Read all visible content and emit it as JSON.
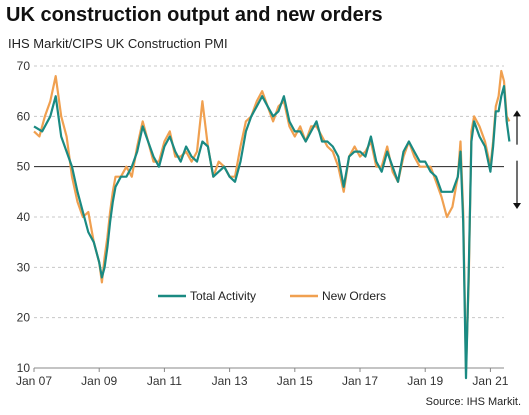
{
  "chart_data": {
    "type": "line",
    "title": "UK construction output and new orders",
    "subtitle": "IHS Markit/CIPS UK Construction PMI",
    "source": "Source: IHS Markit.",
    "ylim": [
      10,
      70
    ],
    "yticks": [
      10,
      20,
      30,
      40,
      50,
      60,
      70
    ],
    "xlim": [
      "2007-01",
      "2021-06"
    ],
    "xticks": [
      "Jan 07",
      "Jan 09",
      "Jan 11",
      "Jan 13",
      "Jan 15",
      "Jan 17",
      "Jan 19",
      "Jan 21"
    ],
    "reference_line": 50,
    "legend_placement": "lower-center",
    "annotation": "double-headed arrow spanning above and below 50",
    "series": [
      {
        "name": "Total Activity",
        "color": "#1a8a82",
        "points": [
          [
            "2007-01",
            58
          ],
          [
            "2007-04",
            57
          ],
          [
            "2007-07",
            60
          ],
          [
            "2007-09",
            64
          ],
          [
            "2007-11",
            56
          ],
          [
            "2008-01",
            53
          ],
          [
            "2008-03",
            50
          ],
          [
            "2008-05",
            45
          ],
          [
            "2008-07",
            41
          ],
          [
            "2008-09",
            37
          ],
          [
            "2008-11",
            35
          ],
          [
            "2009-01",
            31
          ],
          [
            "2009-02",
            28
          ],
          [
            "2009-03",
            30
          ],
          [
            "2009-04",
            34
          ],
          [
            "2009-05",
            39
          ],
          [
            "2009-06",
            43
          ],
          [
            "2009-07",
            46
          ],
          [
            "2009-09",
            48
          ],
          [
            "2009-11",
            48
          ],
          [
            "2010-01",
            50
          ],
          [
            "2010-03",
            53
          ],
          [
            "2010-05",
            58
          ],
          [
            "2010-07",
            55
          ],
          [
            "2010-09",
            52
          ],
          [
            "2010-11",
            50
          ],
          [
            "2011-01",
            54
          ],
          [
            "2011-03",
            56
          ],
          [
            "2011-05",
            53
          ],
          [
            "2011-07",
            51
          ],
          [
            "2011-09",
            54
          ],
          [
            "2011-11",
            52
          ],
          [
            "2012-01",
            51
          ],
          [
            "2012-03",
            55
          ],
          [
            "2012-05",
            54
          ],
          [
            "2012-07",
            48
          ],
          [
            "2012-09",
            49
          ],
          [
            "2012-11",
            50
          ],
          [
            "2013-01",
            48
          ],
          [
            "2013-03",
            47
          ],
          [
            "2013-05",
            51
          ],
          [
            "2013-07",
            57
          ],
          [
            "2013-09",
            60
          ],
          [
            "2013-11",
            62
          ],
          [
            "2014-01",
            64
          ],
          [
            "2014-03",
            62
          ],
          [
            "2014-05",
            60
          ],
          [
            "2014-07",
            61
          ],
          [
            "2014-09",
            64
          ],
          [
            "2014-11",
            59
          ],
          [
            "2015-01",
            57
          ],
          [
            "2015-03",
            57
          ],
          [
            "2015-05",
            55
          ],
          [
            "2015-07",
            57
          ],
          [
            "2015-09",
            59
          ],
          [
            "2015-11",
            55
          ],
          [
            "2016-01",
            55
          ],
          [
            "2016-03",
            54
          ],
          [
            "2016-05",
            52
          ],
          [
            "2016-07",
            46
          ],
          [
            "2016-09",
            52
          ],
          [
            "2016-11",
            53
          ],
          [
            "2017-01",
            53
          ],
          [
            "2017-03",
            52
          ],
          [
            "2017-05",
            56
          ],
          [
            "2017-07",
            51
          ],
          [
            "2017-09",
            49
          ],
          [
            "2017-11",
            53
          ],
          [
            "2018-01",
            50
          ],
          [
            "2018-03",
            47
          ],
          [
            "2018-05",
            53
          ],
          [
            "2018-07",
            55
          ],
          [
            "2018-09",
            53
          ],
          [
            "2018-11",
            51
          ],
          [
            "2019-01",
            51
          ],
          [
            "2019-03",
            49
          ],
          [
            "2019-05",
            48
          ],
          [
            "2019-07",
            45
          ],
          [
            "2019-09",
            45
          ],
          [
            "2019-11",
            45
          ],
          [
            "2020-01",
            48
          ],
          [
            "2020-02",
            53
          ],
          [
            "2020-03",
            39
          ],
          [
            "2020-04",
            8
          ],
          [
            "2020-05",
            29
          ],
          [
            "2020-06",
            55
          ],
          [
            "2020-07",
            59
          ],
          [
            "2020-09",
            56
          ],
          [
            "2020-11",
            54
          ],
          [
            "2021-01",
            49
          ],
          [
            "2021-02",
            54
          ],
          [
            "2021-03",
            61
          ],
          [
            "2021-04",
            61
          ],
          [
            "2021-05",
            64
          ],
          [
            "2021-06",
            66
          ],
          [
            "2021-07",
            59
          ],
          [
            "2021-08",
            55
          ]
        ]
      },
      {
        "name": "New Orders",
        "color": "#f0a050",
        "points": [
          [
            "2007-01",
            57
          ],
          [
            "2007-03",
            56
          ],
          [
            "2007-05",
            60
          ],
          [
            "2007-07",
            63
          ],
          [
            "2007-09",
            68
          ],
          [
            "2007-11",
            60
          ],
          [
            "2008-01",
            56
          ],
          [
            "2008-03",
            48
          ],
          [
            "2008-05",
            43
          ],
          [
            "2008-07",
            40
          ],
          [
            "2008-09",
            41
          ],
          [
            "2008-11",
            35
          ],
          [
            "2009-01",
            31
          ],
          [
            "2009-02",
            27
          ],
          [
            "2009-03",
            32
          ],
          [
            "2009-04",
            36
          ],
          [
            "2009-05",
            41
          ],
          [
            "2009-06",
            45
          ],
          [
            "2009-07",
            48
          ],
          [
            "2009-09",
            48
          ],
          [
            "2009-11",
            50
          ],
          [
            "2010-01",
            48
          ],
          [
            "2010-03",
            54
          ],
          [
            "2010-05",
            59
          ],
          [
            "2010-07",
            55
          ],
          [
            "2010-09",
            51
          ],
          [
            "2010-11",
            51
          ],
          [
            "2011-01",
            55
          ],
          [
            "2011-03",
            57
          ],
          [
            "2011-05",
            52
          ],
          [
            "2011-07",
            52
          ],
          [
            "2011-09",
            53
          ],
          [
            "2011-11",
            51
          ],
          [
            "2012-01",
            53
          ],
          [
            "2012-03",
            63
          ],
          [
            "2012-05",
            54
          ],
          [
            "2012-07",
            48
          ],
          [
            "2012-09",
            51
          ],
          [
            "2012-11",
            50
          ],
          [
            "2013-01",
            48
          ],
          [
            "2013-03",
            48
          ],
          [
            "2013-05",
            54
          ],
          [
            "2013-07",
            59
          ],
          [
            "2013-09",
            60
          ],
          [
            "2013-11",
            63
          ],
          [
            "2014-01",
            65
          ],
          [
            "2014-03",
            62
          ],
          [
            "2014-05",
            59
          ],
          [
            "2014-07",
            62
          ],
          [
            "2014-09",
            63
          ],
          [
            "2014-11",
            58
          ],
          [
            "2015-01",
            56
          ],
          [
            "2015-03",
            58
          ],
          [
            "2015-05",
            55
          ],
          [
            "2015-07",
            58
          ],
          [
            "2015-09",
            58
          ],
          [
            "2015-11",
            56
          ],
          [
            "2016-01",
            54
          ],
          [
            "2016-03",
            53
          ],
          [
            "2016-05",
            50
          ],
          [
            "2016-07",
            45
          ],
          [
            "2016-09",
            52
          ],
          [
            "2016-11",
            54
          ],
          [
            "2017-01",
            52
          ],
          [
            "2017-03",
            53
          ],
          [
            "2017-05",
            55
          ],
          [
            "2017-07",
            50
          ],
          [
            "2017-09",
            50
          ],
          [
            "2017-11",
            54
          ],
          [
            "2018-01",
            49
          ],
          [
            "2018-03",
            47
          ],
          [
            "2018-05",
            52
          ],
          [
            "2018-07",
            55
          ],
          [
            "2018-09",
            52
          ],
          [
            "2018-11",
            50
          ],
          [
            "2019-01",
            50
          ],
          [
            "2019-03",
            50
          ],
          [
            "2019-05",
            47
          ],
          [
            "2019-07",
            44
          ],
          [
            "2019-09",
            40
          ],
          [
            "2019-11",
            42
          ],
          [
            "2020-01",
            48
          ],
          [
            "2020-02",
            55
          ],
          [
            "2020-03",
            41
          ],
          [
            "2020-04",
            10
          ],
          [
            "2020-05",
            27
          ],
          [
            "2020-06",
            57
          ],
          [
            "2020-07",
            60
          ],
          [
            "2020-09",
            58
          ],
          [
            "2020-11",
            55
          ],
          [
            "2021-01",
            50
          ],
          [
            "2021-02",
            55
          ],
          [
            "2021-03",
            62
          ],
          [
            "2021-04",
            64
          ],
          [
            "2021-05",
            69
          ],
          [
            "2021-06",
            67
          ],
          [
            "2021-07",
            60
          ],
          [
            "2021-08",
            59
          ]
        ]
      }
    ]
  }
}
